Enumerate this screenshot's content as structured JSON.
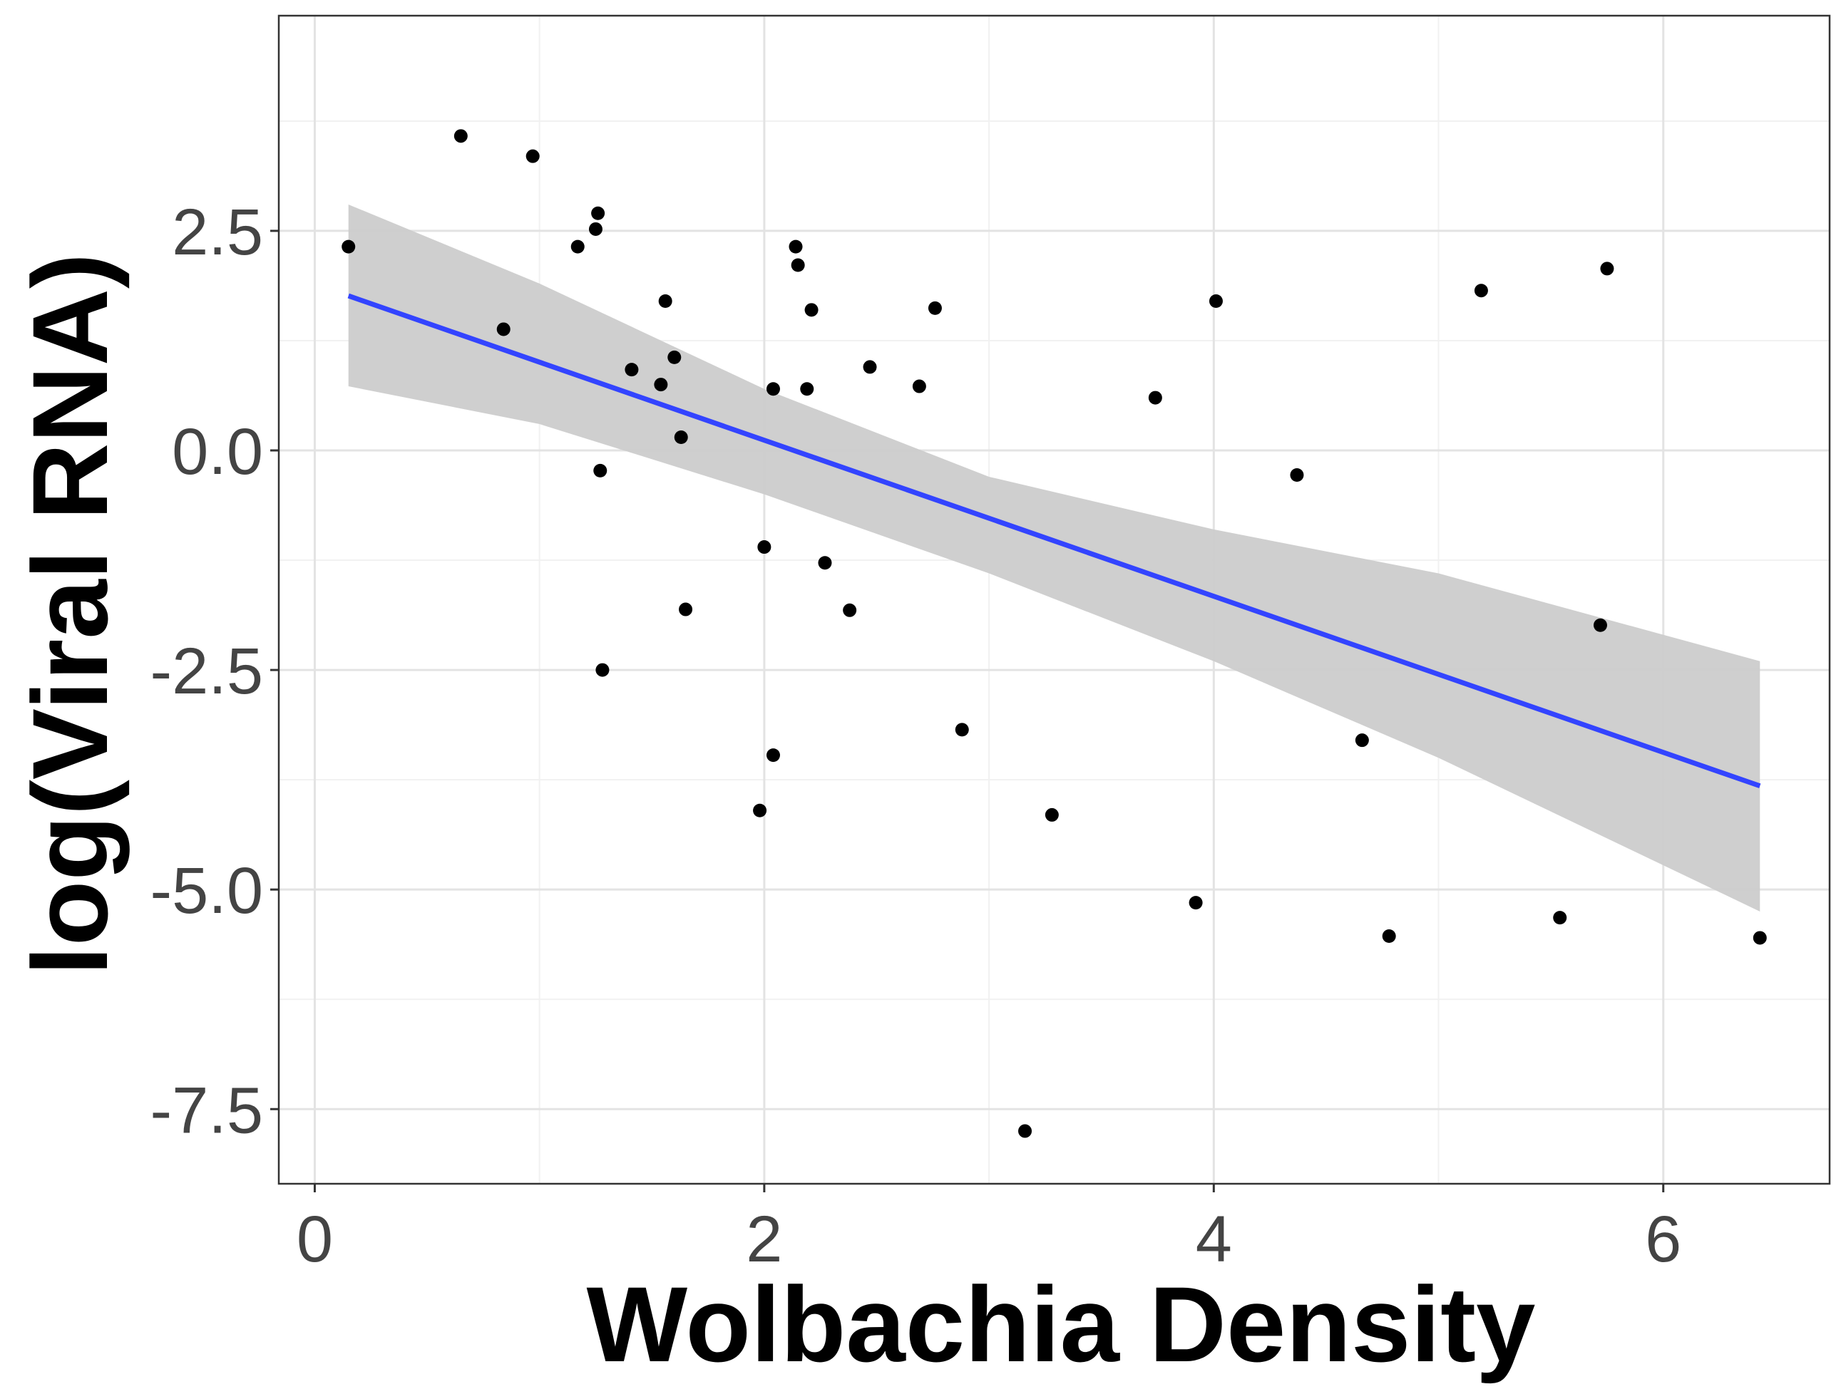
{
  "chart_data": {
    "type": "scatter",
    "title": "",
    "xlabel": "Wolbachia Density",
    "ylabel": "log(Viral RNA)",
    "xlim": [
      -0.16,
      6.74
    ],
    "ylim": [
      -8.35,
      4.95
    ],
    "x_ticks": [
      0,
      2,
      4,
      6
    ],
    "x_tick_labels": [
      "0",
      "2",
      "4",
      "6"
    ],
    "y_ticks": [
      -7.5,
      -5.0,
      -2.5,
      0.0,
      2.5
    ],
    "y_tick_labels": [
      "-7.5",
      "-5.0",
      "-2.5",
      "0.0",
      "2.5"
    ],
    "grid": true,
    "legend": "none",
    "colors": {
      "points": "#000000",
      "fit_line": "#3344ff",
      "confidence_band": "#cccccc",
      "grid_major": "#e3e3e3",
      "grid_minor": "#f1f1f1",
      "panel_border": "#333333"
    },
    "points": [
      {
        "x": 0.15,
        "y": 2.32
      },
      {
        "x": 0.65,
        "y": 3.58
      },
      {
        "x": 0.84,
        "y": 1.38
      },
      {
        "x": 0.97,
        "y": 3.35
      },
      {
        "x": 1.17,
        "y": 2.32
      },
      {
        "x": 1.25,
        "y": 2.52
      },
      {
        "x": 1.26,
        "y": 2.7
      },
      {
        "x": 1.27,
        "y": -0.23
      },
      {
        "x": 1.28,
        "y": -2.5
      },
      {
        "x": 1.41,
        "y": 0.92
      },
      {
        "x": 1.54,
        "y": 0.75
      },
      {
        "x": 1.56,
        "y": 1.7
      },
      {
        "x": 1.6,
        "y": 1.06
      },
      {
        "x": 1.63,
        "y": 0.15
      },
      {
        "x": 1.65,
        "y": -1.81
      },
      {
        "x": 1.98,
        "y": -4.1
      },
      {
        "x": 2.0,
        "y": -1.1
      },
      {
        "x": 2.04,
        "y": 0.7
      },
      {
        "x": 2.04,
        "y": -3.47
      },
      {
        "x": 2.14,
        "y": 2.32
      },
      {
        "x": 2.15,
        "y": 2.11
      },
      {
        "x": 2.19,
        "y": 0.7
      },
      {
        "x": 2.21,
        "y": 1.6
      },
      {
        "x": 2.27,
        "y": -1.28
      },
      {
        "x": 2.38,
        "y": -1.82
      },
      {
        "x": 2.47,
        "y": 0.95
      },
      {
        "x": 2.69,
        "y": 0.73
      },
      {
        "x": 2.76,
        "y": 1.62
      },
      {
        "x": 2.88,
        "y": -3.18
      },
      {
        "x": 3.16,
        "y": -7.75
      },
      {
        "x": 3.28,
        "y": -4.15
      },
      {
        "x": 3.74,
        "y": 0.6
      },
      {
        "x": 3.92,
        "y": -5.15
      },
      {
        "x": 4.01,
        "y": 1.7
      },
      {
        "x": 4.37,
        "y": -0.28
      },
      {
        "x": 4.66,
        "y": -3.3
      },
      {
        "x": 4.78,
        "y": -5.53
      },
      {
        "x": 5.19,
        "y": 1.82
      },
      {
        "x": 5.54,
        "y": -5.32
      },
      {
        "x": 5.72,
        "y": -1.99
      },
      {
        "x": 5.75,
        "y": 2.07
      },
      {
        "x": 6.43,
        "y": -5.55
      }
    ],
    "fit": {
      "x": [
        0.15,
        6.43
      ],
      "y": [
        1.76,
        -3.82
      ]
    },
    "confidence_band": {
      "x": [
        0.15,
        1.0,
        2.0,
        3.0,
        4.0,
        5.0,
        6.43
      ],
      "upper": [
        2.8,
        1.9,
        0.7,
        -0.3,
        -0.9,
        -1.4,
        -2.4
      ],
      "lower": [
        0.73,
        0.3,
        -0.5,
        -1.4,
        -2.4,
        -3.5,
        -5.25
      ]
    }
  }
}
